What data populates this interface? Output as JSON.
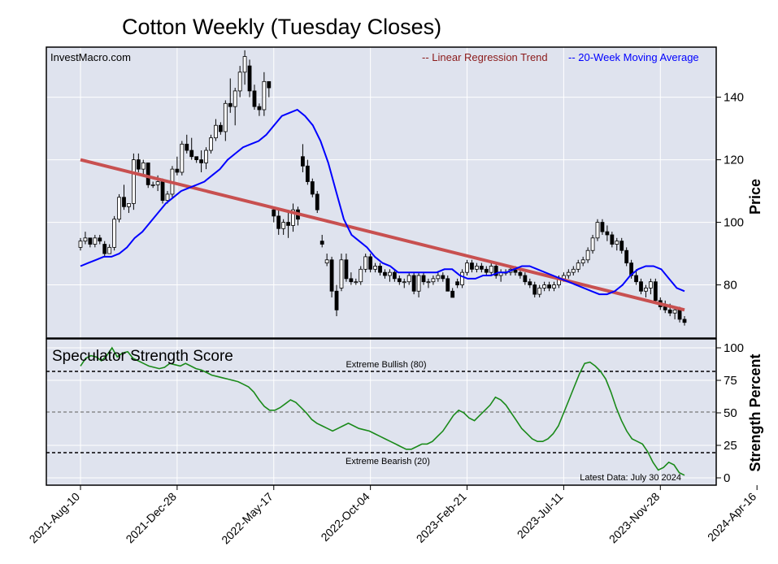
{
  "title": "Cotton Weekly (Tuesday Closes)",
  "watermark": "InvestMacro.com",
  "legend": {
    "regression_label": "-- Linear Regression Trend",
    "ma_label": "-- 20-Week Moving Average",
    "regression_color": "#8b1a1a",
    "ma_color": "#0000ff"
  },
  "price_axis": {
    "label": "Price",
    "ticks": [
      "140",
      "120",
      "100",
      "80"
    ]
  },
  "strength_axis": {
    "label": "Strength Percent",
    "ticks": [
      "100",
      "75",
      "50",
      "25",
      "0"
    ]
  },
  "x_ticks": [
    "2021-Aug-10",
    "2021-Dec-28",
    "2022-May-17",
    "2022-Oct-04",
    "2023-Feb-21",
    "2023-Jul-11",
    "2023-Nov-28",
    "2024-Apr-16"
  ],
  "lower_panel": {
    "title": "Speculator Strength Score",
    "extreme_bullish_label": "Extreme Bullish (80)",
    "extreme_bearish_label": "Extreme Bearish (20)",
    "latest_label": "Latest Data: July 30 2024"
  },
  "chart_data": [
    {
      "type": "candlestick",
      "title": "Cotton Weekly (Tuesday Closes)",
      "ylabel": "Price",
      "ylim": [
        63,
        156
      ],
      "x_start": "2021-08-10",
      "x_step_days": 7,
      "x_end": "2024-07-30",
      "grid": true,
      "legend_position": "top-right",
      "candles": [
        [
          92,
          95,
          91,
          94
        ],
        [
          94,
          97,
          93,
          95
        ],
        [
          95,
          95,
          92,
          93
        ],
        [
          93,
          96,
          92,
          95
        ],
        [
          95,
          96,
          93,
          94
        ],
        [
          93,
          94,
          89,
          90
        ],
        [
          90,
          93,
          90,
          92
        ],
        [
          92,
          102,
          91,
          101
        ],
        [
          101,
          109,
          100,
          108
        ],
        [
          108,
          112,
          104,
          105
        ],
        [
          105,
          106,
          103,
          106
        ],
        [
          106,
          122,
          104,
          120
        ],
        [
          120,
          122,
          116,
          117
        ],
        [
          117,
          120,
          115,
          119
        ],
        [
          119,
          119,
          111,
          112
        ],
        [
          112,
          113,
          111,
          112
        ],
        [
          112,
          115,
          110,
          113
        ],
        [
          113,
          114,
          106,
          107
        ],
        [
          107,
          110,
          106,
          109
        ],
        [
          109,
          118,
          108,
          117
        ],
        [
          117,
          121,
          115,
          116
        ],
        [
          116,
          126,
          115,
          125
        ],
        [
          125,
          128,
          122,
          123
        ],
        [
          123,
          127,
          120,
          121
        ],
        [
          121,
          121,
          119,
          120
        ],
        [
          120,
          123,
          116,
          119
        ],
        [
          119,
          124,
          117,
          123
        ],
        [
          123,
          128,
          122,
          127
        ],
        [
          127,
          133,
          126,
          131
        ],
        [
          131,
          132,
          128,
          129
        ],
        [
          129,
          139,
          126,
          138
        ],
        [
          138,
          146,
          135,
          137
        ],
        [
          137,
          143,
          131,
          142
        ],
        [
          142,
          150,
          140,
          148
        ],
        [
          148,
          155,
          144,
          153
        ],
        [
          150,
          152,
          140,
          142
        ],
        [
          142,
          144,
          136,
          137
        ],
        [
          137,
          138,
          134,
          136
        ],
        [
          136,
          148,
          134,
          145
        ],
        [
          145,
          145,
          140,
          143
        ],
        [
          104,
          105,
          100,
          102
        ],
        [
          102,
          104,
          96,
          98
        ],
        [
          98,
          101,
          96,
          100
        ],
        [
          100,
          104,
          95,
          99
        ],
        [
          99,
          106,
          97,
          104
        ],
        [
          104,
          105,
          99,
          101
        ],
        [
          121,
          125,
          116,
          118
        ],
        [
          118,
          120,
          112,
          113
        ],
        [
          113,
          114,
          108,
          109
        ],
        [
          109,
          110,
          103,
          104
        ],
        [
          94,
          96,
          92,
          93
        ],
        [
          87,
          90,
          86,
          88
        ],
        [
          88,
          89,
          76,
          78
        ],
        [
          78,
          80,
          70,
          72
        ],
        [
          79,
          90,
          78,
          88
        ],
        [
          88,
          90,
          81,
          82
        ],
        [
          82,
          84,
          80,
          81
        ],
        [
          81,
          82,
          80,
          81
        ],
        [
          81,
          86,
          80,
          85
        ],
        [
          85,
          90,
          84,
          89
        ],
        [
          89,
          90,
          84,
          85
        ],
        [
          85,
          87,
          84,
          86
        ],
        [
          86,
          87,
          83,
          84
        ],
        [
          84,
          85,
          82,
          83
        ],
        [
          83,
          85,
          81,
          84
        ],
        [
          84,
          85,
          81,
          82
        ],
        [
          82,
          83,
          80,
          81
        ],
        [
          81,
          82,
          79,
          81
        ],
        [
          81,
          84,
          80,
          83
        ],
        [
          83,
          84,
          77,
          78
        ],
        [
          78,
          84,
          76,
          83
        ],
        [
          83,
          84,
          80,
          81
        ],
        [
          81,
          82,
          79,
          81
        ],
        [
          81,
          83,
          80,
          82
        ],
        [
          82,
          84,
          81,
          83
        ],
        [
          83,
          84,
          81,
          82
        ],
        [
          82,
          83,
          78,
          78
        ],
        [
          78,
          79,
          76,
          76
        ],
        [
          81,
          82,
          79,
          80
        ],
        [
          80,
          85,
          79,
          84
        ],
        [
          84,
          88,
          83,
          87
        ],
        [
          87,
          88,
          84,
          85
        ],
        [
          85,
          87,
          84,
          86
        ],
        [
          86,
          87,
          84,
          85
        ],
        [
          85,
          86,
          83,
          84
        ],
        [
          84,
          87,
          83,
          86
        ],
        [
          86,
          87,
          82,
          83
        ],
        [
          83,
          85,
          81,
          84
        ],
        [
          84,
          85,
          83,
          84
        ],
        [
          84,
          86,
          83,
          85
        ],
        [
          85,
          86,
          83,
          84
        ],
        [
          84,
          85,
          82,
          83
        ],
        [
          83,
          84,
          80,
          81
        ],
        [
          81,
          82,
          79,
          80
        ],
        [
          80,
          81,
          76,
          77
        ],
        [
          77,
          80,
          76,
          79
        ],
        [
          79,
          81,
          78,
          80
        ],
        [
          80,
          81,
          78,
          79
        ],
        [
          79,
          81,
          78,
          80
        ],
        [
          80,
          83,
          79,
          82
        ],
        [
          82,
          84,
          81,
          83
        ],
        [
          83,
          85,
          82,
          84
        ],
        [
          84,
          86,
          83,
          85
        ],
        [
          85,
          88,
          84,
          87
        ],
        [
          87,
          89,
          86,
          88
        ],
        [
          88,
          92,
          87,
          91
        ],
        [
          91,
          96,
          90,
          95
        ],
        [
          95,
          101,
          94,
          100
        ],
        [
          100,
          101,
          96,
          97
        ],
        [
          97,
          99,
          94,
          96
        ],
        [
          96,
          97,
          92,
          93
        ],
        [
          93,
          95,
          91,
          94
        ],
        [
          94,
          95,
          90,
          91
        ],
        [
          91,
          92,
          86,
          87
        ],
        [
          87,
          88,
          82,
          83
        ],
        [
          83,
          85,
          80,
          81
        ],
        [
          81,
          82,
          77,
          78
        ],
        [
          78,
          80,
          76,
          79
        ],
        [
          79,
          82,
          77,
          81
        ],
        [
          81,
          82,
          74,
          75
        ],
        [
          75,
          76,
          72,
          73
        ],
        [
          73,
          75,
          71,
          72
        ],
        [
          72,
          74,
          70,
          71
        ],
        [
          71,
          73,
          69,
          72
        ],
        [
          72,
          73,
          68,
          69
        ],
        [
          69,
          70,
          67,
          68
        ]
      ],
      "moving_average_20w": [
        86,
        87,
        88,
        89,
        89,
        90,
        92,
        95,
        97,
        100,
        103,
        106,
        108,
        110,
        111,
        112,
        113,
        115,
        117,
        120,
        122,
        124,
        125,
        126,
        128,
        131,
        134,
        135,
        136,
        134,
        131,
        126,
        119,
        110,
        101,
        96,
        94,
        92,
        89,
        87,
        86,
        84,
        84,
        84,
        84,
        84,
        84,
        85,
        85,
        83,
        82,
        82,
        83,
        83,
        84,
        84,
        85,
        86,
        86,
        85,
        84,
        83,
        82,
        81,
        80,
        79,
        78,
        77,
        77,
        78,
        80,
        83,
        85,
        86,
        86,
        85,
        82,
        79,
        78
      ],
      "regression_trend": {
        "start": 120,
        "end": 72
      },
      "series": [
        {
          "name": "Linear Regression Trend"
        },
        {
          "name": "20-Week Moving Average"
        }
      ]
    },
    {
      "type": "line",
      "title": "Speculator Strength Score",
      "ylabel": "Strength Percent",
      "ylim": [
        0,
        100
      ],
      "reference_lines": [
        {
          "label": "Extreme Bullish (80)",
          "value": 80
        },
        {
          "label": "Extreme Bearish (20)",
          "value": 20
        }
      ],
      "values": [
        86,
        92,
        94,
        93,
        90,
        94,
        100,
        93,
        96,
        97,
        92,
        90,
        88,
        86,
        85,
        84,
        85,
        88,
        87,
        86,
        88,
        86,
        84,
        83,
        81,
        79,
        78,
        77,
        76,
        75,
        74,
        72,
        70,
        66,
        60,
        55,
        52,
        52,
        54,
        57,
        60,
        58,
        54,
        50,
        45,
        42,
        40,
        38,
        36,
        38,
        40,
        42,
        40,
        38,
        37,
        36,
        34,
        32,
        30,
        28,
        26,
        24,
        22,
        22,
        24,
        26,
        26,
        28,
        32,
        36,
        42,
        48,
        52,
        50,
        46,
        44,
        48,
        52,
        56,
        62,
        60,
        56,
        50,
        44,
        38,
        34,
        30,
        28,
        28,
        30,
        34,
        40,
        50,
        60,
        70,
        80,
        88,
        89,
        86,
        82,
        76,
        66,
        54,
        44,
        36,
        30,
        28,
        26,
        20,
        12,
        6,
        8,
        12,
        10,
        4,
        2
      ]
    }
  ]
}
